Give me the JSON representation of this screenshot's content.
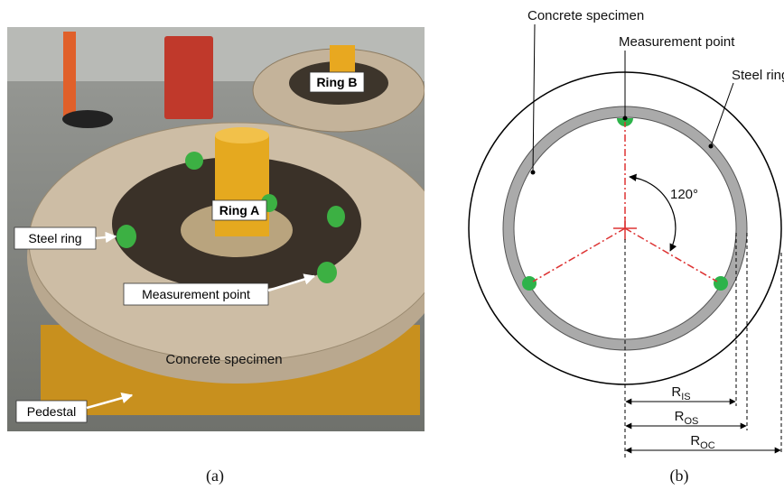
{
  "panel_a": {
    "labels": {
      "ring_b": "Ring B",
      "ring_a": "Ring A",
      "steel_ring": "Steel ring",
      "measurement_point": "Measurement point",
      "concrete_specimen": "Concrete specimen",
      "pedestal": "Pedestal"
    },
    "caption": "(a)"
  },
  "panel_b": {
    "labels": {
      "concrete_specimen": "Concrete specimen",
      "measurement_point": "Measurement point",
      "steel_ring": "Steel ring"
    },
    "angle": "120°",
    "dimensions": [
      {
        "symbol": "R",
        "subscript": "IS"
      },
      {
        "symbol": "R",
        "subscript": "OS"
      },
      {
        "symbol": "R",
        "subscript": "OC"
      }
    ],
    "caption": "(b)"
  }
}
